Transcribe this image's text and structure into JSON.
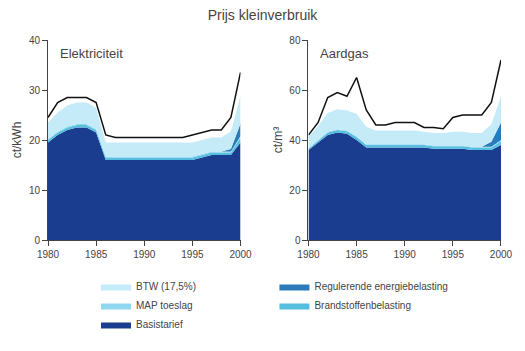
{
  "title": "Prijs kleinverbruik",
  "chart_data": [
    {
      "type": "area",
      "stacked": true,
      "title": "Elektriciteit",
      "ylabel": "ct/kWh",
      "x": [
        1980,
        1981,
        1982,
        1983,
        1984,
        1985,
        1986,
        1987,
        1988,
        1989,
        1990,
        1991,
        1992,
        1993,
        1994,
        1995,
        1996,
        1997,
        1998,
        1999,
        2000
      ],
      "xlim": [
        1980,
        2000
      ],
      "xticks": [
        1980,
        1985,
        1990,
        1995,
        2000
      ],
      "ylim": [
        0,
        40
      ],
      "yticks": [
        0,
        10,
        20,
        30,
        40
      ],
      "grid": false,
      "legend": "bottom",
      "series": [
        {
          "name": "Basistarief",
          "color": "#1a3d8f",
          "values": [
            19.5,
            21.0,
            22.0,
            22.5,
            22.5,
            21.5,
            16.0,
            16.0,
            16.0,
            16.0,
            16.0,
            16.0,
            16.0,
            16.0,
            16.0,
            16.0,
            16.5,
            17.0,
            17.0,
            17.0,
            19.5
          ]
        },
        {
          "name": "Brandstoffenbelasting",
          "color": "#56bfe0",
          "values": [
            0.5,
            0.5,
            0.5,
            0.5,
            0.5,
            0.5,
            0.5,
            0.5,
            0.5,
            0.5,
            0.5,
            0.5,
            0.5,
            0.5,
            0.5,
            0.5,
            0.5,
            0.5,
            0.5,
            0.5,
            1.0
          ]
        },
        {
          "name": "MAP toeslag",
          "color": "#90d8f0",
          "values": [
            0.2,
            0.2,
            0.2,
            0.2,
            0.2,
            0.2,
            0.2,
            0.2,
            0.2,
            0.2,
            0.2,
            0.2,
            0.2,
            0.2,
            0.2,
            0.2,
            0.2,
            0.2,
            0.2,
            0.2,
            0.3
          ]
        },
        {
          "name": "Regulerende energiebelasting",
          "color": "#2b7bba",
          "values": [
            0.0,
            0.0,
            0.0,
            0.0,
            0.0,
            0.0,
            0.0,
            0.0,
            0.0,
            0.0,
            0.0,
            0.0,
            0.0,
            0.0,
            0.0,
            0.0,
            0.0,
            0.0,
            0.0,
            0.5,
            2.5
          ]
        },
        {
          "name": "BTW (17,5%)",
          "color": "#c5eaf8",
          "values": [
            3.3,
            3.8,
            4.2,
            4.3,
            4.3,
            4.2,
            2.8,
            2.8,
            2.8,
            2.8,
            2.8,
            2.8,
            2.8,
            2.8,
            2.8,
            2.8,
            2.8,
            2.8,
            2.8,
            3.5,
            5.5
          ]
        },
        {
          "type": "line",
          "color": "#111111",
          "values": [
            24.5,
            27.5,
            28.5,
            28.5,
            28.5,
            27.5,
            21.0,
            20.5,
            20.5,
            20.5,
            20.5,
            20.5,
            20.5,
            20.5,
            20.5,
            21.0,
            21.5,
            22.0,
            22.0,
            24.5,
            33.5
          ]
        }
      ]
    },
    {
      "type": "area",
      "stacked": true,
      "title": "Aardgas",
      "ylabel": "ct/m³",
      "x": [
        1980,
        1981,
        1982,
        1983,
        1984,
        1985,
        1986,
        1987,
        1988,
        1989,
        1990,
        1991,
        1992,
        1993,
        1994,
        1995,
        1996,
        1997,
        1998,
        1999,
        2000
      ],
      "xlim": [
        1980,
        2000
      ],
      "xticks": [
        1980,
        1985,
        1990,
        1995,
        2000
      ],
      "ylim": [
        0,
        80
      ],
      "yticks": [
        0,
        20,
        40,
        60,
        80
      ],
      "grid": false,
      "legend": "bottom",
      "series": [
        {
          "name": "Basistarief",
          "color": "#1a3d8f",
          "values": [
            36.0,
            39.0,
            42.0,
            43.0,
            42.5,
            40.0,
            37.0,
            37.0,
            37.0,
            37.0,
            37.0,
            37.0,
            37.0,
            36.5,
            36.5,
            36.5,
            36.5,
            36.0,
            36.0,
            36.0,
            38.0
          ]
        },
        {
          "name": "Brandstoffenbelasting",
          "color": "#56bfe0",
          "values": [
            0.5,
            0.8,
            1.0,
            1.0,
            1.0,
            1.2,
            1.0,
            1.0,
            1.0,
            1.0,
            1.0,
            1.0,
            1.0,
            1.0,
            1.0,
            1.0,
            1.0,
            1.0,
            1.0,
            1.0,
            1.5
          ]
        },
        {
          "name": "MAP toeslag",
          "color": "#90d8f0",
          "values": [
            0.3,
            0.3,
            0.3,
            0.3,
            0.3,
            0.3,
            0.3,
            0.3,
            0.3,
            0.3,
            0.3,
            0.3,
            0.3,
            0.3,
            0.3,
            0.3,
            0.3,
            0.3,
            0.3,
            0.3,
            0.5
          ]
        },
        {
          "name": "Regulerende energiebelasting",
          "color": "#2b7bba",
          "values": [
            0.0,
            0.0,
            0.0,
            0.0,
            0.0,
            0.0,
            0.0,
            0.0,
            0.0,
            0.0,
            0.0,
            0.0,
            0.0,
            0.0,
            0.0,
            0.0,
            0.0,
            0.0,
            0.0,
            2.0,
            7.0
          ]
        },
        {
          "name": "BTW (17,5%)",
          "color": "#c5eaf8",
          "values": [
            4.5,
            5.5,
            7.5,
            8.0,
            8.0,
            9.0,
            7.0,
            5.5,
            5.5,
            5.5,
            5.5,
            5.5,
            5.0,
            5.0,
            5.0,
            5.5,
            5.5,
            5.5,
            5.5,
            7.0,
            10.5
          ]
        },
        {
          "type": "line",
          "color": "#111111",
          "values": [
            42.0,
            47.0,
            57.0,
            59.0,
            57.5,
            65.0,
            52.0,
            46.0,
            46.0,
            47.0,
            47.0,
            47.0,
            45.0,
            45.0,
            44.5,
            49.0,
            50.0,
            50.0,
            50.0,
            55.0,
            72.0
          ]
        }
      ]
    }
  ]
}
